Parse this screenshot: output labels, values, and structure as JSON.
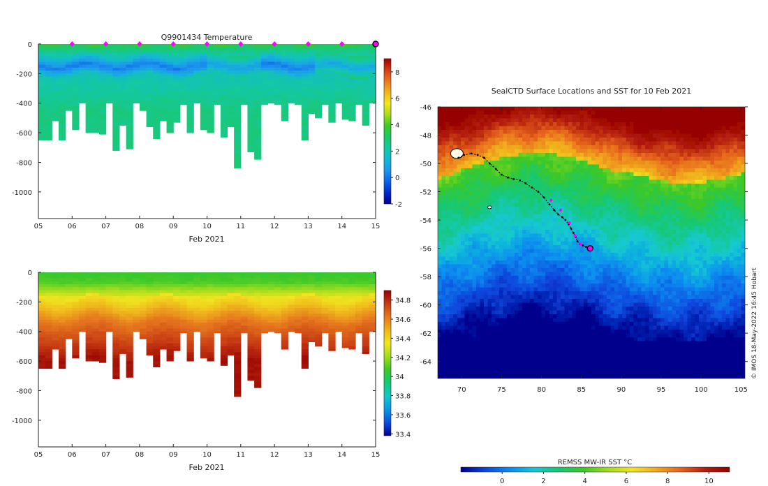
{
  "colors": {
    "temp": [
      "#00008c",
      "#0028c8",
      "#0a64e6",
      "#1e96ee",
      "#14b8d4",
      "#14c8a0",
      "#1ec864",
      "#3cc828",
      "#aadc1e",
      "#f0e61e",
      "#f0b41e",
      "#eb781e",
      "#d23c14",
      "#a00000"
    ],
    "sal": [
      "#00008c",
      "#0a50dc",
      "#0a96e6",
      "#14c8c8",
      "#14c878",
      "#3cc828",
      "#a0dc1e",
      "#f0e61e",
      "#f0b41e",
      "#e6781e",
      "#c83c14",
      "#960000"
    ],
    "sst": [
      "#00008c",
      "#0a46dc",
      "#0a8cf0",
      "#14c8d2",
      "#14c878",
      "#3cc828",
      "#a0dc1e",
      "#f0e61e",
      "#f0aa1e",
      "#e6641e",
      "#b41e0a",
      "#960000"
    ],
    "track_marker": "#ff00ff"
  },
  "chart_data": [
    {
      "id": "temperature-section",
      "type": "heatmap",
      "title": "Q9901434  Temperature",
      "xlabel": "Feb 2021",
      "ylabel": "",
      "x_ticks": [
        "05",
        "06",
        "07",
        "08",
        "09",
        "10",
        "11",
        "12",
        "13",
        "14",
        "15"
      ],
      "x_range_days": [
        5,
        15
      ],
      "y_ticks": [
        "0",
        "-200",
        "-400",
        "-600",
        "-800",
        "-1000"
      ],
      "ylim": [
        -1180,
        0
      ],
      "colorbar": {
        "min": -2,
        "max": 9,
        "ticks": [
          "-2",
          "0",
          "2",
          "4",
          "6",
          "8"
        ]
      },
      "profile_markers_days": [
        6,
        7,
        8,
        9,
        10,
        11,
        12,
        13,
        14
      ],
      "last_profile_day": 15,
      "profile_depths_m": [
        650,
        650,
        520,
        650,
        450,
        580,
        400,
        600,
        600,
        610,
        400,
        720,
        550,
        710,
        400,
        450,
        560,
        640,
        520,
        600,
        530,
        410,
        600,
        400,
        580,
        600,
        410,
        630,
        560,
        840,
        410,
        730,
        780,
        410,
        400,
        410,
        520,
        400,
        410,
        650,
        470,
        500,
        410,
        530,
        400,
        510,
        520,
        410,
        550,
        400
      ]
    },
    {
      "id": "salinity-section",
      "type": "heatmap",
      "title": "",
      "xlabel": "Feb 2021",
      "ylabel": "",
      "x_ticks": [
        "05",
        "06",
        "07",
        "08",
        "09",
        "10",
        "11",
        "12",
        "13",
        "14",
        "15"
      ],
      "x_range_days": [
        5,
        15
      ],
      "y_ticks": [
        "0",
        "-200",
        "-400",
        "-600",
        "-800",
        "-1000"
      ],
      "ylim": [
        -1180,
        0
      ],
      "colorbar": {
        "min": 33.38,
        "max": 34.9,
        "ticks": [
          "33.4",
          "33.6",
          "33.8",
          "34",
          "34.2",
          "34.4",
          "34.6",
          "34.8"
        ]
      }
    },
    {
      "id": "sst-map",
      "type": "heatmap",
      "title": "SealCTD Surface Locations and SST for 10 Feb 2021",
      "xlabel": "",
      "ylabel": "",
      "x_ticks": [
        "70",
        "75",
        "80",
        "85",
        "90",
        "95",
        "100",
        "105"
      ],
      "xlim": [
        67,
        105.5
      ],
      "y_ticks": [
        "-46",
        "-48",
        "-50",
        "-52",
        "-54",
        "-56",
        "-58",
        "-60",
        "-62",
        "-64"
      ],
      "ylim": [
        -65.2,
        -46
      ],
      "colorbar": {
        "label": "REMSS MW-IR SST °C",
        "min": -2,
        "max": 11,
        "ticks": [
          "0",
          "2",
          "4",
          "6",
          "8",
          "10"
        ]
      },
      "track_lon": [
        69.6,
        70.3,
        71.2,
        72.0,
        72.8,
        73.5,
        74.3,
        75.0,
        75.8,
        76.5,
        77.3,
        78.0,
        78.8,
        79.6,
        80.3,
        81.0,
        81.6,
        82.1,
        82.6,
        83.0,
        83.4,
        83.7,
        84.0,
        84.3,
        84.5,
        84.8,
        85.2,
        85.6,
        86.1
      ],
      "track_lat": [
        -49.6,
        -49.4,
        -49.3,
        -49.4,
        -49.6,
        -50.0,
        -50.4,
        -50.8,
        -51.0,
        -51.1,
        -51.2,
        -51.4,
        -51.7,
        -52.0,
        -52.4,
        -52.9,
        -53.3,
        -53.6,
        -53.8,
        -54.0,
        -54.3,
        -54.6,
        -54.9,
        -55.2,
        -55.5,
        -55.7,
        -55.8,
        -55.9,
        -56.0
      ],
      "track_magenta_lon": [
        81.2,
        82.4,
        83.5,
        84.2,
        84.9
      ],
      "track_magenta_lat": [
        -52.6,
        -53.3,
        -54.2,
        -55.1,
        -55.7
      ],
      "current_position": {
        "lon": 86.1,
        "lat": -56.0
      }
    }
  ],
  "credit": "©  IMOS 18-May-2022 16:45 Hobart"
}
